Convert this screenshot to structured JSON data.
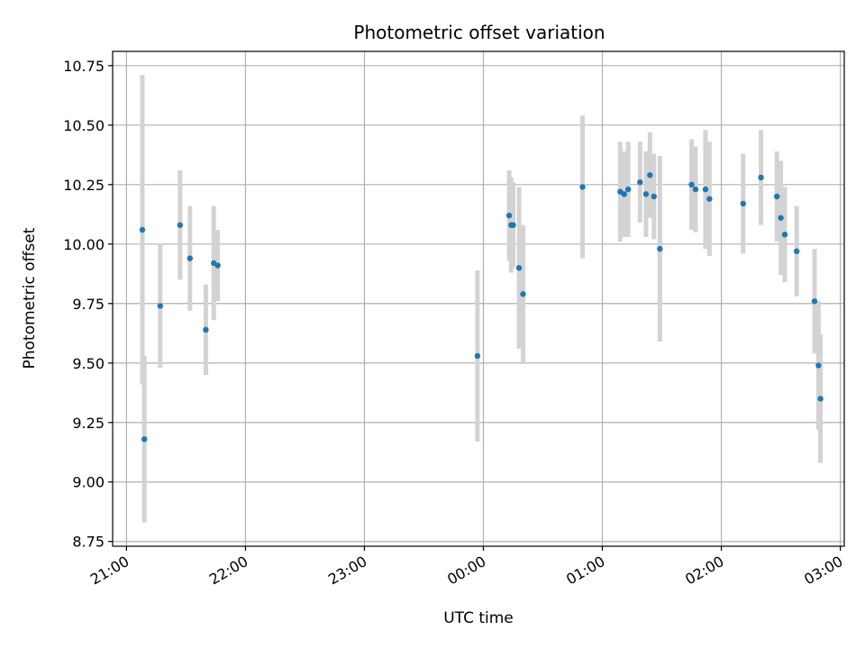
{
  "chart_data": {
    "type": "scatter",
    "title": "Photometric offset variation",
    "xlabel": "UTC time",
    "ylabel": "Photometric offset",
    "x_axis": {
      "kind": "time",
      "range": [
        "20:53",
        "03:02"
      ],
      "ticks": [
        "21:00",
        "22:00",
        "23:00",
        "00:00",
        "01:00",
        "02:00",
        "03:00"
      ]
    },
    "y_axis": {
      "range": [
        8.73,
        10.81
      ],
      "ticks": [
        "8.75",
        "9.00",
        "9.25",
        "9.50",
        "9.75",
        "10.00",
        "10.25",
        "10.50",
        "10.75"
      ]
    },
    "grid": true,
    "colors": {
      "point": "#1f77b4",
      "errorbar": "#d3d3d3",
      "grid": "#b0b0b0"
    },
    "series": [
      {
        "points": [
          {
            "t": "21:08",
            "y": 10.06,
            "err": 0.65
          },
          {
            "t": "21:09",
            "y": 9.18,
            "err": 0.35
          },
          {
            "t": "21:17",
            "y": 9.74,
            "err": 0.26
          },
          {
            "t": "21:27",
            "y": 10.08,
            "err": 0.23
          },
          {
            "t": "21:32",
            "y": 9.94,
            "err": 0.22
          },
          {
            "t": "21:40",
            "y": 9.64,
            "err": 0.19
          },
          {
            "t": "21:44",
            "y": 9.92,
            "err": 0.24
          },
          {
            "t": "21:46",
            "y": 9.91,
            "err": 0.15
          },
          {
            "t": "23:57",
            "y": 9.53,
            "err": 0.36
          },
          {
            "t": "00:13",
            "y": 10.12,
            "err": 0.19
          },
          {
            "t": "00:14",
            "y": 10.08,
            "err": 0.2
          },
          {
            "t": "00:15",
            "y": 10.08,
            "err": 0.18
          },
          {
            "t": "00:18",
            "y": 9.9,
            "err": 0.34
          },
          {
            "t": "00:20",
            "y": 9.79,
            "err": 0.29
          },
          {
            "t": "00:50",
            "y": 10.24,
            "err": 0.3
          },
          {
            "t": "01:09",
            "y": 10.22,
            "err": 0.21
          },
          {
            "t": "01:11",
            "y": 10.21,
            "err": 0.18
          },
          {
            "t": "01:13",
            "y": 10.23,
            "err": 0.2
          },
          {
            "t": "01:19",
            "y": 10.26,
            "err": 0.17
          },
          {
            "t": "01:22",
            "y": 10.21,
            "err": 0.18
          },
          {
            "t": "01:24",
            "y": 10.29,
            "err": 0.18
          },
          {
            "t": "01:26",
            "y": 10.2,
            "err": 0.18
          },
          {
            "t": "01:29",
            "y": 9.98,
            "err": 0.39
          },
          {
            "t": "01:45",
            "y": 10.25,
            "err": 0.19
          },
          {
            "t": "01:47",
            "y": 10.23,
            "err": 0.18
          },
          {
            "t": "01:52",
            "y": 10.23,
            "err": 0.25
          },
          {
            "t": "01:54",
            "y": 10.19,
            "err": 0.24
          },
          {
            "t": "02:11",
            "y": 10.17,
            "err": 0.21
          },
          {
            "t": "02:20",
            "y": 10.28,
            "err": 0.2
          },
          {
            "t": "02:28",
            "y": 10.2,
            "err": 0.19
          },
          {
            "t": "02:30",
            "y": 10.11,
            "err": 0.24
          },
          {
            "t": "02:32",
            "y": 10.04,
            "err": 0.2
          },
          {
            "t": "02:38",
            "y": 9.97,
            "err": 0.19
          },
          {
            "t": "02:47",
            "y": 9.76,
            "err": 0.22
          },
          {
            "t": "02:49",
            "y": 9.49,
            "err": 0.27
          },
          {
            "t": "02:50",
            "y": 9.35,
            "err": 0.27
          }
        ]
      }
    ]
  }
}
